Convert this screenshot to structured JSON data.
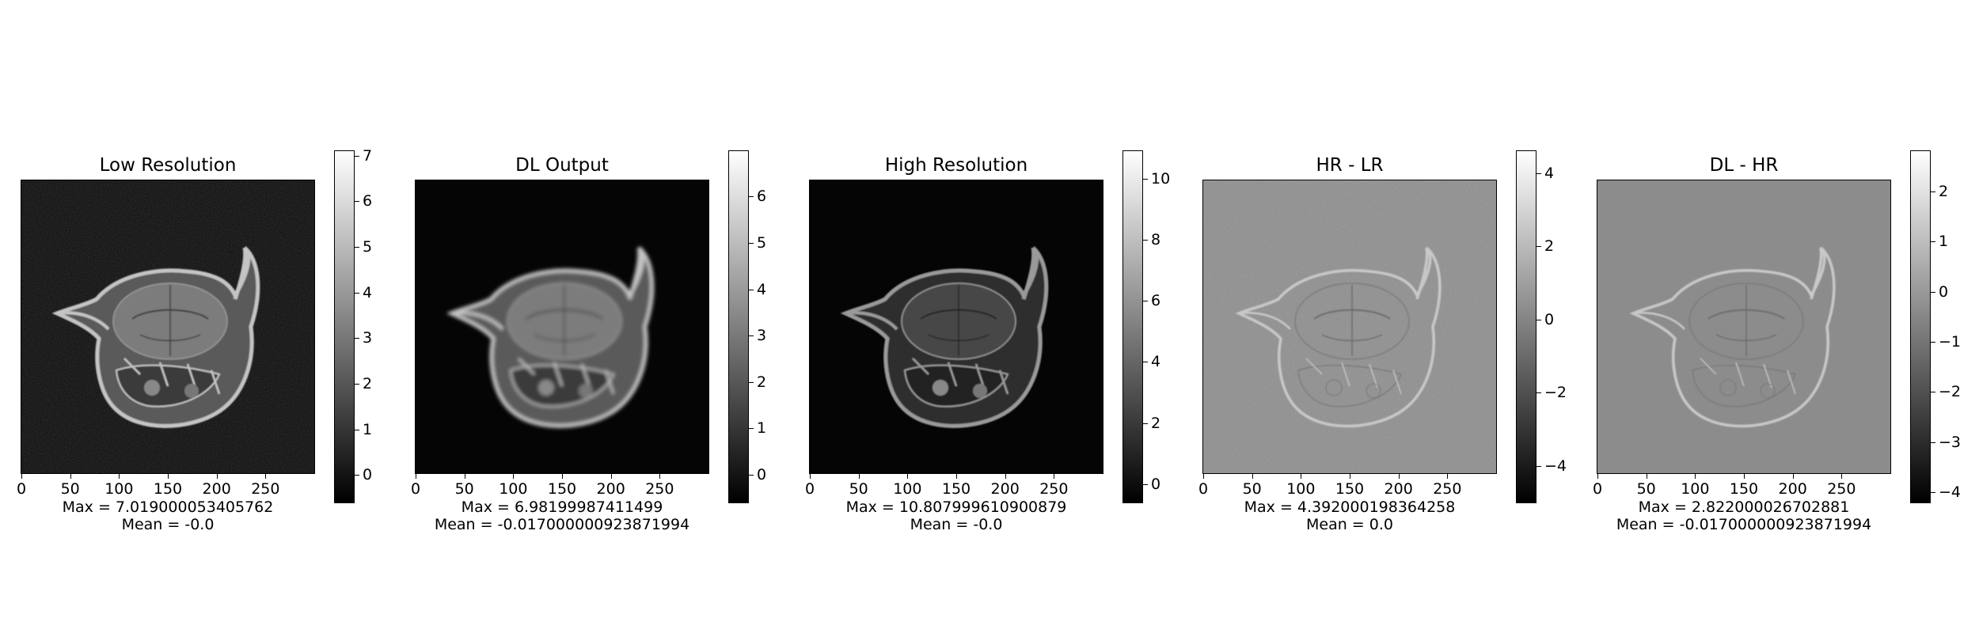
{
  "figure": {
    "panels": [
      {
        "title": "Low Resolution",
        "max_text": "Max = 7.019000053405762",
        "mean_text": "Mean = -0.0",
        "background": "#050505",
        "style": "bright",
        "noise": true,
        "colorbar": {
          "min": -0.6,
          "max": 7.1,
          "ticks": [
            "0",
            "1",
            "2",
            "3",
            "4",
            "5",
            "6",
            "7"
          ]
        }
      },
      {
        "title": "DL Output",
        "max_text": "Max = 6.98199987411499",
        "mean_text": "Mean = -0.017000000923871994",
        "background": "#050505",
        "style": "smooth",
        "noise": false,
        "colorbar": {
          "min": -0.6,
          "max": 6.98,
          "ticks": [
            "0",
            "1",
            "2",
            "3",
            "4",
            "5",
            "6"
          ]
        }
      },
      {
        "title": "High Resolution",
        "max_text": "Max = 10.807999610900879",
        "mean_text": "Mean = -0.0",
        "background": "#050505",
        "style": "dark",
        "noise": false,
        "colorbar": {
          "min": -0.6,
          "max": 10.9,
          "ticks": [
            "0",
            "2",
            "4",
            "6",
            "8",
            "10"
          ]
        }
      },
      {
        "title": "HR - LR",
        "max_text": "Max = 4.392000198364258",
        "mean_text": "Mean = 0.0",
        "background": "#8c8c8c",
        "style": "edges",
        "noise": true,
        "colorbar": {
          "min": -5.0,
          "max": 4.6,
          "ticks": [
            "−4",
            "−2",
            "0",
            "2",
            "4"
          ]
        }
      },
      {
        "title": "DL - HR",
        "max_text": "Max = 2.822000026702881",
        "mean_text": "Mean = -0.017000000923871994",
        "background": "#8c8c8c",
        "style": "edges",
        "noise": false,
        "colorbar": {
          "min": -4.2,
          "max": 2.8,
          "ticks": [
            "−4",
            "−3",
            "−2",
            "−1",
            "0",
            "1",
            "2"
          ]
        }
      }
    ],
    "x_axis": {
      "range": [
        0,
        300
      ],
      "ticks": [
        "0",
        "50",
        "100",
        "150",
        "200",
        "250"
      ]
    }
  }
}
